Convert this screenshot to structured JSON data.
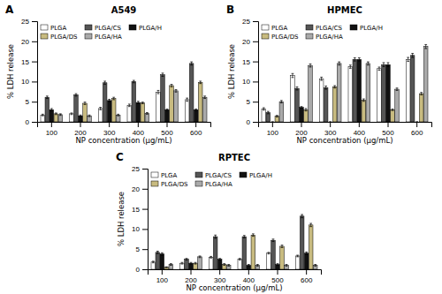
{
  "chart_data": [
    {
      "type": "bar",
      "title": "A549",
      "annotations": [
        "A"
      ],
      "x_label": "NP concentration (μg/mL)",
      "y_label": "% LDH release",
      "categories": [
        100,
        200,
        300,
        400,
        500,
        600
      ],
      "series": [
        {
          "name": "PLGA",
          "color": "#ffffff",
          "values": [
            1.7,
            2.0,
            3.3,
            4.1,
            7.4,
            5.5
          ],
          "errors": [
            0.2,
            0.2,
            0.3,
            0.3,
            0.4,
            0.4
          ]
        },
        {
          "name": "PLGA/CS",
          "color": "#555555",
          "values": [
            6.1,
            6.7,
            9.7,
            10.0,
            11.7,
            14.5
          ],
          "errors": [
            0.3,
            0.3,
            0.4,
            0.3,
            0.4,
            0.4
          ]
        },
        {
          "name": "PLGA/H",
          "color": "#111111",
          "values": [
            3.0,
            1.5,
            5.3,
            4.8,
            3.0,
            3.0
          ],
          "errors": [
            0.3,
            0.2,
            0.3,
            0.3,
            0.2,
            0.2
          ]
        },
        {
          "name": "PLGA/DS",
          "color": "#c8bb80",
          "values": [
            2.0,
            4.6,
            5.8,
            4.7,
            9.0,
            9.8
          ],
          "errors": [
            0.2,
            0.3,
            0.3,
            0.2,
            0.3,
            0.3
          ]
        },
        {
          "name": "PLGA/HA",
          "color": "#aaaaaa",
          "values": [
            1.8,
            1.5,
            1.7,
            2.1,
            7.7,
            6.1
          ],
          "errors": [
            0.2,
            0.2,
            0.2,
            0.2,
            0.3,
            0.3
          ]
        }
      ],
      "ylim": [
        0,
        25
      ],
      "yticks": [
        0,
        5,
        10,
        15,
        20,
        25
      ],
      "legend": "upper left"
    },
    {
      "type": "bar",
      "title": "HPMEC",
      "annotations": [
        "B"
      ],
      "x_label": "NP concentration (μg/mL)",
      "y_label": "% LDH release",
      "categories": [
        100,
        200,
        300,
        400,
        500,
        600
      ],
      "series": [
        {
          "name": "PLGA",
          "color": "#ffffff",
          "values": [
            3.2,
            11.5,
            10.7,
            13.7,
            13.2,
            15.5
          ],
          "errors": [
            0.3,
            0.5,
            0.4,
            0.4,
            0.4,
            0.5
          ]
        },
        {
          "name": "PLGA/CS",
          "color": "#555555",
          "values": [
            2.3,
            8.3,
            8.5,
            15.5,
            14.2,
            16.5
          ],
          "errors": [
            0.3,
            0.4,
            0.4,
            0.4,
            0.5,
            0.5
          ]
        },
        {
          "name": "PLGA/H",
          "color": "#111111",
          "values": [
            0.0,
            3.6,
            0.0,
            15.5,
            14.2,
            0.0
          ],
          "errors": [
            0.0,
            0.2,
            0.0,
            0.4,
            0.5,
            0.0
          ]
        },
        {
          "name": "PLGA/DS",
          "color": "#c8bb80",
          "values": [
            1.4,
            3.0,
            8.7,
            5.4,
            3.0,
            7.0
          ],
          "errors": [
            0.2,
            0.3,
            0.3,
            0.3,
            0.2,
            0.3
          ]
        },
        {
          "name": "PLGA/HA",
          "color": "#aaaaaa",
          "values": [
            5.0,
            14.0,
            14.5,
            14.5,
            8.1,
            18.7
          ],
          "errors": [
            0.3,
            0.4,
            0.4,
            0.4,
            0.3,
            0.5
          ]
        }
      ],
      "ylim": [
        0,
        25
      ],
      "yticks": [
        0,
        5,
        10,
        15,
        20,
        25
      ],
      "legend": "upper left"
    },
    {
      "type": "bar",
      "title": "RPTEC",
      "annotations": [
        "C"
      ],
      "x_label": "NP concentration (μg/mL)",
      "y_label": "% LDH release",
      "categories": [
        100,
        200,
        300,
        400,
        500,
        600
      ],
      "series": [
        {
          "name": "PLGA",
          "color": "#ffffff",
          "values": [
            1.8,
            1.5,
            3.0,
            2.5,
            4.0,
            3.3
          ],
          "errors": [
            0.2,
            0.2,
            0.2,
            0.2,
            0.2,
            0.2
          ]
        },
        {
          "name": "PLGA/CS",
          "color": "#555555",
          "values": [
            4.2,
            2.5,
            8.1,
            8.1,
            7.2,
            13.2
          ],
          "errors": [
            0.3,
            0.2,
            0.4,
            0.3,
            0.3,
            0.4
          ]
        },
        {
          "name": "PLGA/H",
          "color": "#111111",
          "values": [
            3.8,
            1.5,
            2.5,
            1.0,
            1.2,
            4.0
          ],
          "errors": [
            0.3,
            0.2,
            0.2,
            0.2,
            0.2,
            0.3
          ]
        },
        {
          "name": "PLGA/DS",
          "color": "#c8bb80",
          "values": [
            0.5,
            1.5,
            1.2,
            8.5,
            5.7,
            11.0
          ],
          "errors": [
            0.1,
            0.2,
            0.2,
            0.3,
            0.3,
            0.4
          ]
        },
        {
          "name": "PLGA/HA",
          "color": "#aaaaaa",
          "values": [
            1.2,
            3.1,
            1.0,
            1.0,
            1.0,
            1.0
          ],
          "errors": [
            0.2,
            0.2,
            0.2,
            0.2,
            0.2,
            0.2
          ]
        }
      ],
      "ylim": [
        0,
        25
      ],
      "yticks": [
        0,
        5,
        10,
        15,
        20,
        25
      ],
      "legend": "upper left"
    }
  ]
}
